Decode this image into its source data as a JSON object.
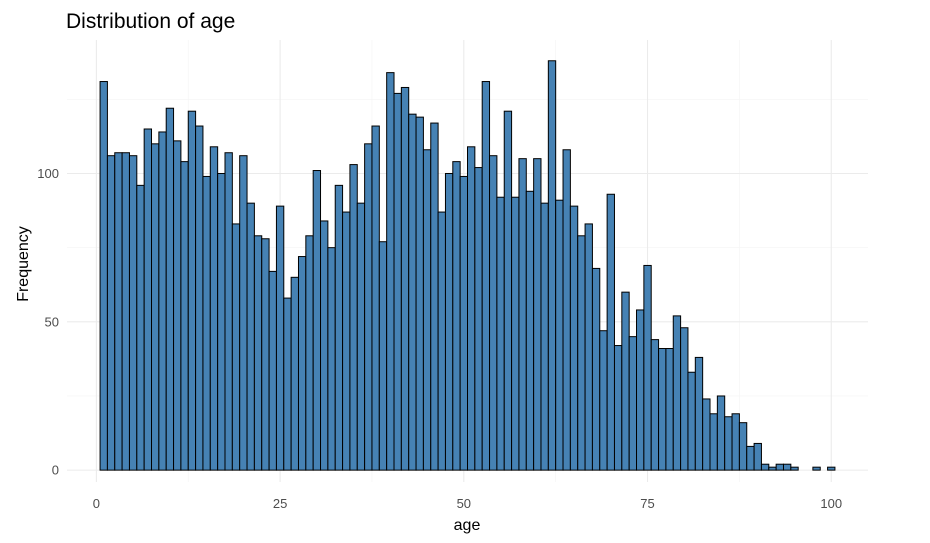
{
  "chart_data": {
    "type": "bar",
    "title": "Distribution of age",
    "xlabel": "age",
    "ylabel": "Frequency",
    "xlim": [
      -4,
      105
    ],
    "ylim": [
      -4,
      145
    ],
    "x_ticks": [
      0,
      25,
      50,
      75,
      100
    ],
    "y_ticks": [
      0,
      50,
      100
    ],
    "grid": true,
    "bar_fill": "#4682b4",
    "bar_outline": "#000000",
    "bin_width": 1,
    "x": [
      1,
      2,
      3,
      4,
      5,
      6,
      7,
      8,
      9,
      10,
      11,
      12,
      13,
      14,
      15,
      16,
      17,
      18,
      19,
      20,
      21,
      22,
      23,
      24,
      25,
      26,
      27,
      28,
      29,
      30,
      31,
      32,
      33,
      34,
      35,
      36,
      37,
      38,
      39,
      40,
      41,
      42,
      43,
      44,
      45,
      46,
      47,
      48,
      49,
      50,
      51,
      52,
      53,
      54,
      55,
      56,
      57,
      58,
      59,
      60,
      61,
      62,
      63,
      64,
      65,
      66,
      67,
      68,
      69,
      70,
      71,
      72,
      73,
      74,
      75,
      76,
      77,
      78,
      79,
      80,
      81,
      82,
      83,
      84,
      85,
      86,
      87,
      88,
      89,
      90,
      91,
      92,
      93,
      94,
      95,
      96,
      97,
      98,
      99,
      100
    ],
    "values": [
      131,
      106,
      107,
      107,
      106,
      96,
      115,
      110,
      114,
      122,
      111,
      104,
      121,
      116,
      99,
      109,
      100,
      107,
      83,
      106,
      90,
      79,
      78,
      67,
      89,
      58,
      65,
      72,
      79,
      101,
      84,
      75,
      96,
      87,
      103,
      90,
      110,
      116,
      77,
      134,
      127,
      129,
      120,
      119,
      108,
      117,
      87,
      100,
      104,
      99,
      109,
      102,
      131,
      106,
      92,
      121,
      92,
      105,
      94,
      105,
      90,
      138,
      91,
      108,
      89,
      79,
      83,
      68,
      47,
      93,
      42,
      60,
      45,
      54,
      69,
      44,
      41,
      41,
      52,
      48,
      33,
      38,
      24,
      19,
      25,
      18,
      19,
      16,
      8,
      9,
      2,
      1,
      2,
      2,
      1,
      0,
      0,
      1,
      0,
      1
    ]
  }
}
